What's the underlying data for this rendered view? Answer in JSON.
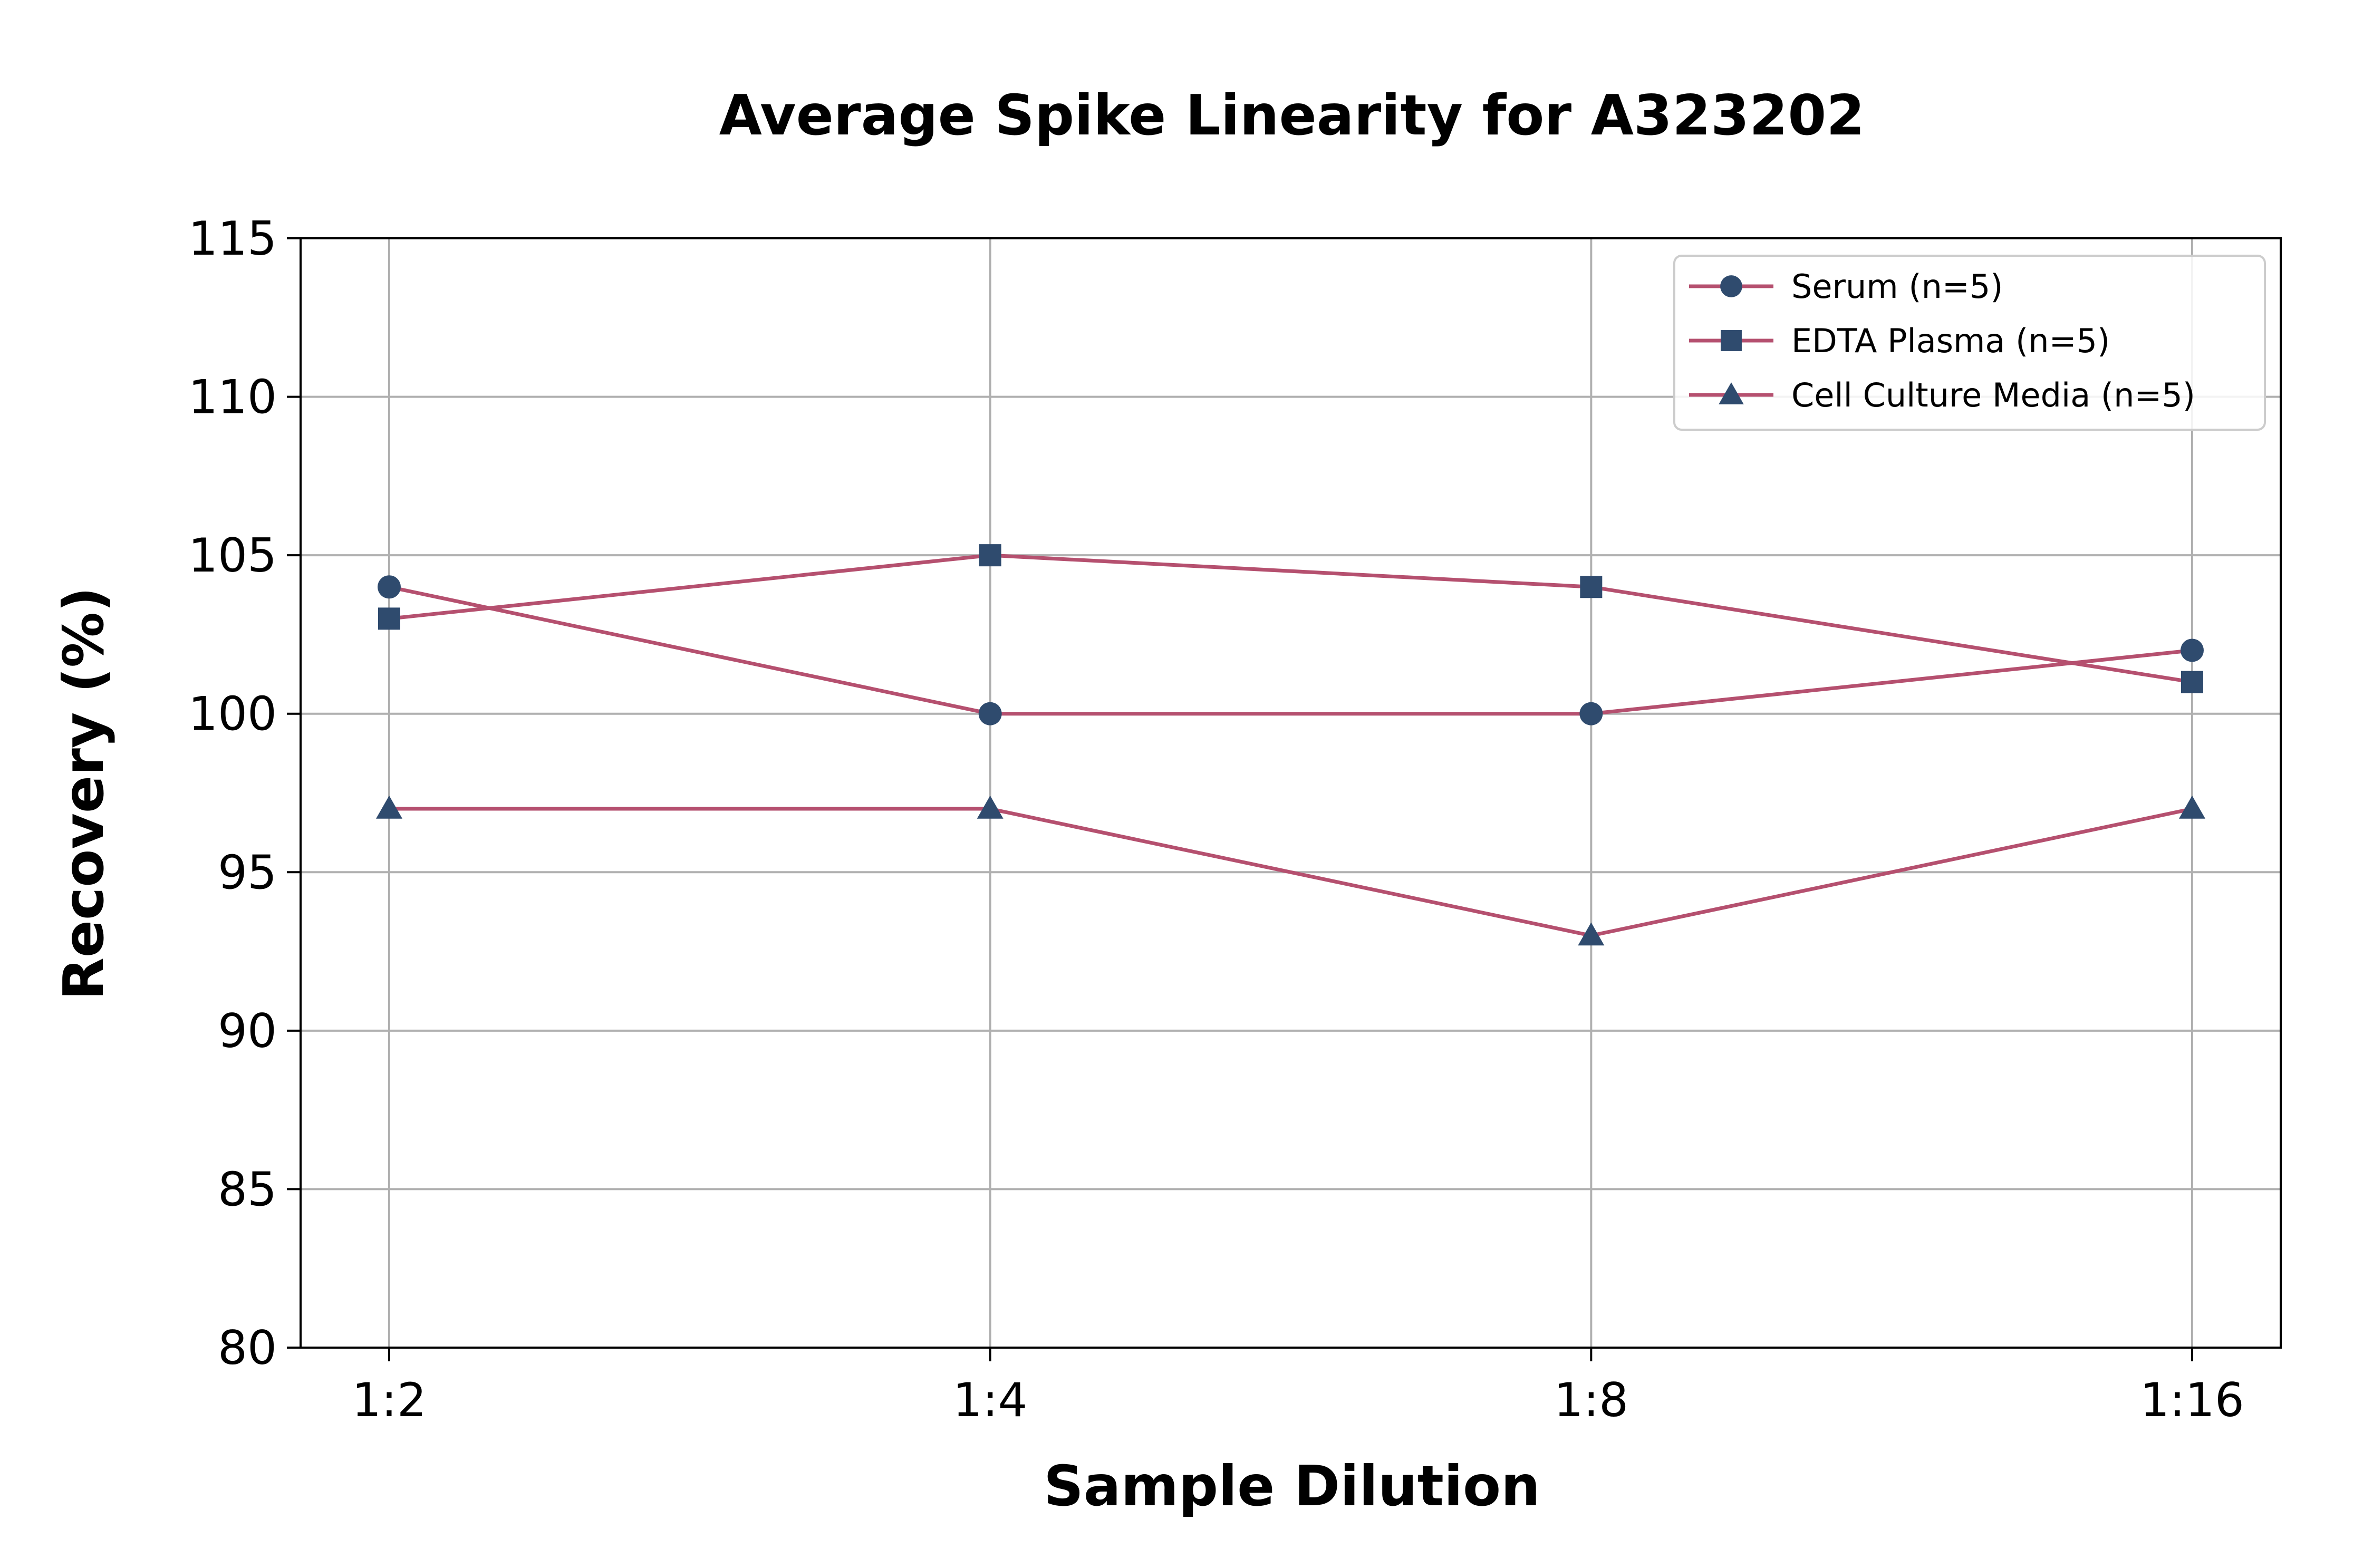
{
  "chart_data": {
    "type": "line",
    "title": "Average Spike Linearity for A323202",
    "xlabel": "Sample Dilution",
    "ylabel": "Recovery (%)",
    "categories": [
      "1:2",
      "1:4",
      "1:8",
      "1:16"
    ],
    "ylim": [
      80,
      115
    ],
    "yticks": [
      80,
      85,
      90,
      95,
      100,
      105,
      110,
      115
    ],
    "grid": true,
    "legend_position": "top-right",
    "line_color": "#b5506f",
    "marker_color": "#2f4b6e",
    "series": [
      {
        "name": "Serum (n=5)",
        "marker": "circle",
        "values": [
          104,
          100,
          100,
          102
        ]
      },
      {
        "name": "EDTA Plasma (n=5)",
        "marker": "square",
        "values": [
          103,
          105,
          104,
          101
        ]
      },
      {
        "name": "Cell Culture Media (n=5)",
        "marker": "triangle",
        "values": [
          97,
          97,
          93,
          97
        ]
      }
    ]
  }
}
